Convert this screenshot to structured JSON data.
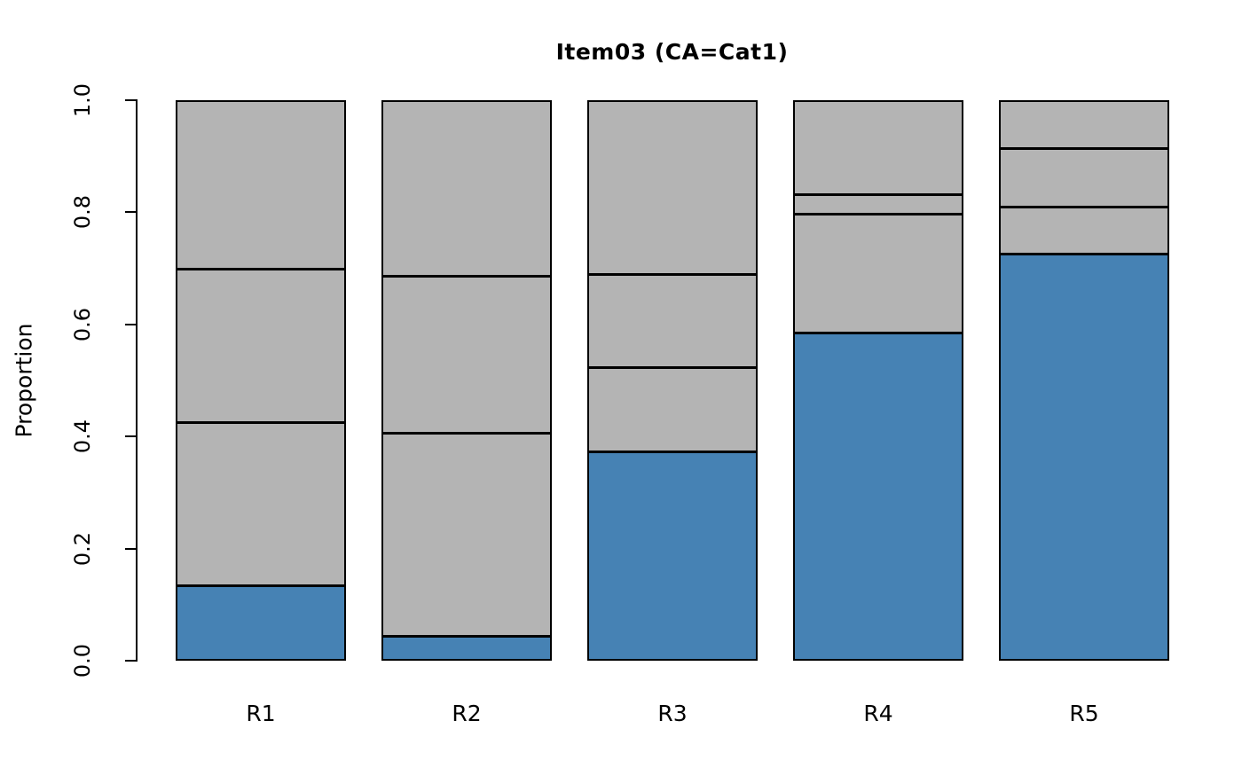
{
  "chart_data": {
    "type": "bar",
    "subtype": "stacked-proportion",
    "title": "Item03 (CA=Cat1)",
    "xlabel": "",
    "ylabel": "Proportion",
    "ylim": [
      0,
      1
    ],
    "yticks": [
      0.0,
      0.2,
      0.4,
      0.6,
      0.8,
      1.0
    ],
    "ytick_labels": [
      "0.0",
      "0.2",
      "0.4",
      "0.6",
      "0.8",
      "1.0"
    ],
    "categories": [
      "R1",
      "R2",
      "R3",
      "R4",
      "R5"
    ],
    "highlighted_category": "Cat1",
    "legend": "none",
    "grid": false,
    "colors": {
      "highlight": "#4682B4",
      "other": "#B4B4B4",
      "border": "#000000",
      "background": "#FFFFFF",
      "text": "#000000"
    },
    "bars": [
      {
        "label": "R1",
        "segments": [
          {
            "role": "highlight",
            "value": 0.133
          },
          {
            "role": "other",
            "value": 0.294
          },
          {
            "role": "other",
            "value": 0.276
          },
          {
            "role": "other",
            "value": 0.297
          }
        ]
      },
      {
        "label": "R2",
        "segments": [
          {
            "role": "highlight",
            "value": 0.043
          },
          {
            "role": "other",
            "value": 0.364
          },
          {
            "role": "other",
            "value": 0.283
          },
          {
            "role": "other",
            "value": 0.31
          }
        ]
      },
      {
        "label": "R3",
        "segments": [
          {
            "role": "highlight",
            "value": 0.374
          },
          {
            "role": "other",
            "value": 0.151
          },
          {
            "role": "other",
            "value": 0.168
          },
          {
            "role": "other",
            "value": 0.307
          }
        ]
      },
      {
        "label": "R4",
        "segments": [
          {
            "role": "highlight",
            "value": 0.588
          },
          {
            "role": "other",
            "value": 0.213
          },
          {
            "role": "other",
            "value": 0.035
          },
          {
            "role": "other",
            "value": 0.164
          }
        ]
      },
      {
        "label": "R5",
        "segments": [
          {
            "role": "highlight",
            "value": 0.73
          },
          {
            "role": "other",
            "value": 0.083
          },
          {
            "role": "other",
            "value": 0.106
          },
          {
            "role": "other",
            "value": 0.081
          }
        ]
      }
    ]
  }
}
